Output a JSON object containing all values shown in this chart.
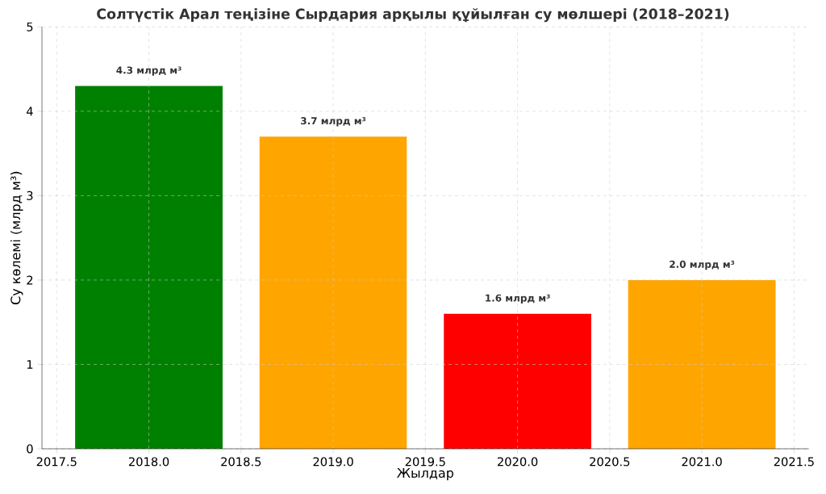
{
  "chart_data": {
    "type": "bar",
    "title": "Солтүстік Арал теңізіне Сырдария арқылы құйылған су мөлшері (2018–2021)",
    "xlabel": "Жылдар",
    "ylabel": "Су көлемі (млрд м³)",
    "x": [
      2018,
      2019,
      2020,
      2021
    ],
    "values": [
      4.3,
      3.7,
      1.6,
      2.0
    ],
    "colors": [
      "#008000",
      "#ffa500",
      "#ff0000",
      "#ffa500"
    ],
    "value_labels": [
      "4.3 млрд м³",
      "3.7 млрд м³",
      "1.6 млрд м³",
      "2.0 млрд м³"
    ],
    "xlim": [
      2017.42,
      2021.58
    ],
    "ylim": [
      0,
      5
    ],
    "xticks": [
      {
        "value": 2017.5,
        "label": "2017.5"
      },
      {
        "value": 2018.0,
        "label": "2018.0"
      },
      {
        "value": 2018.5,
        "label": "2018.5"
      },
      {
        "value": 2019.0,
        "label": "2019.0"
      },
      {
        "value": 2019.5,
        "label": "2019.5"
      },
      {
        "value": 2020.0,
        "label": "2020.0"
      },
      {
        "value": 2020.5,
        "label": "2020.5"
      },
      {
        "value": 2021.0,
        "label": "2021.0"
      },
      {
        "value": 2021.5,
        "label": "2021.5"
      }
    ],
    "yticks": [
      0,
      1,
      2,
      3,
      4,
      5
    ],
    "grid": true
  }
}
